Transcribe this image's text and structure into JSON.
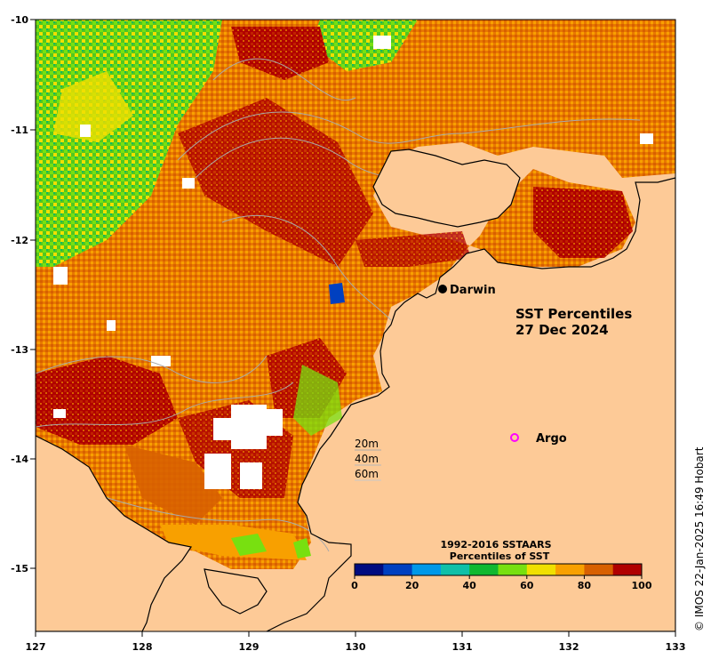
{
  "map": {
    "title_line1": "SST Percentiles",
    "title_line2": "27 Dec 2024",
    "credit": "© IMOS 22-Jan-2025 16:49 Hobart",
    "x_ticks": [
      "127",
      "128",
      "129",
      "130",
      "131",
      "132",
      "133"
    ],
    "y_ticks": [
      "-10",
      "-11",
      "-12",
      "-13",
      "-14",
      "-15"
    ],
    "places": {
      "darwin": "Darwin",
      "argo": "Argo"
    },
    "depth_legend": [
      "20m",
      "40m",
      "60m"
    ],
    "land_color": "#fdca97",
    "argo_color": "#ff00ff"
  },
  "colorbar": {
    "title_line1": "1992-2016 SSTAARS",
    "title_line2": "Percentiles of SST",
    "tick_labels": [
      "0",
      "20",
      "40",
      "60",
      "80",
      "100"
    ],
    "colors": [
      "#000c80",
      "#0040c0",
      "#0098e8",
      "#10c0a8",
      "#10b830",
      "#78e010",
      "#f0e000",
      "#f8a000",
      "#d86000",
      "#b00000"
    ]
  }
}
